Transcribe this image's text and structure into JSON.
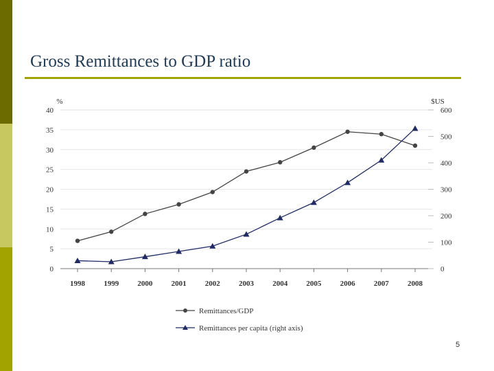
{
  "slide": {
    "title": "Gross Remittances to GDP ratio",
    "page_number": "5"
  },
  "colors": {
    "bar_top": "#6b6b00",
    "bar_mid": "#c8c860",
    "bar_bottom": "#a3a300",
    "title_text": "#1f3b57",
    "title_rule": "#a3a300",
    "series_gdp": "#444444",
    "series_capita": "#1f2a66"
  },
  "chart_data": {
    "type": "line",
    "x": [
      "1998",
      "1999",
      "2000",
      "2001",
      "2002",
      "2003",
      "2004",
      "2005",
      "2006",
      "2007",
      "2008"
    ],
    "left_axis": {
      "unit_label": "%",
      "range": [
        0,
        40
      ],
      "ticks": [
        "0",
        "5",
        "10",
        "15",
        "20",
        "25",
        "30",
        "35",
        "40"
      ]
    },
    "right_axis": {
      "unit_label": "$US",
      "range": [
        0,
        600
      ],
      "ticks": [
        "0",
        "100",
        "200",
        "300",
        "400",
        "500",
        "600"
      ]
    },
    "grid": "horizontal",
    "legend_position": "bottom",
    "series": [
      {
        "name": "Remittances/GDP",
        "axis": "left",
        "marker": "circle",
        "values": [
          7.0,
          9.3,
          13.8,
          16.2,
          19.3,
          24.5,
          26.8,
          30.5,
          34.5,
          33.9,
          31.0
        ]
      },
      {
        "name": "Remittances per capita (right axis)",
        "axis": "right",
        "marker": "triangle",
        "values": [
          30,
          26,
          45,
          65,
          85,
          130,
          192,
          250,
          325,
          410,
          530
        ]
      }
    ]
  }
}
